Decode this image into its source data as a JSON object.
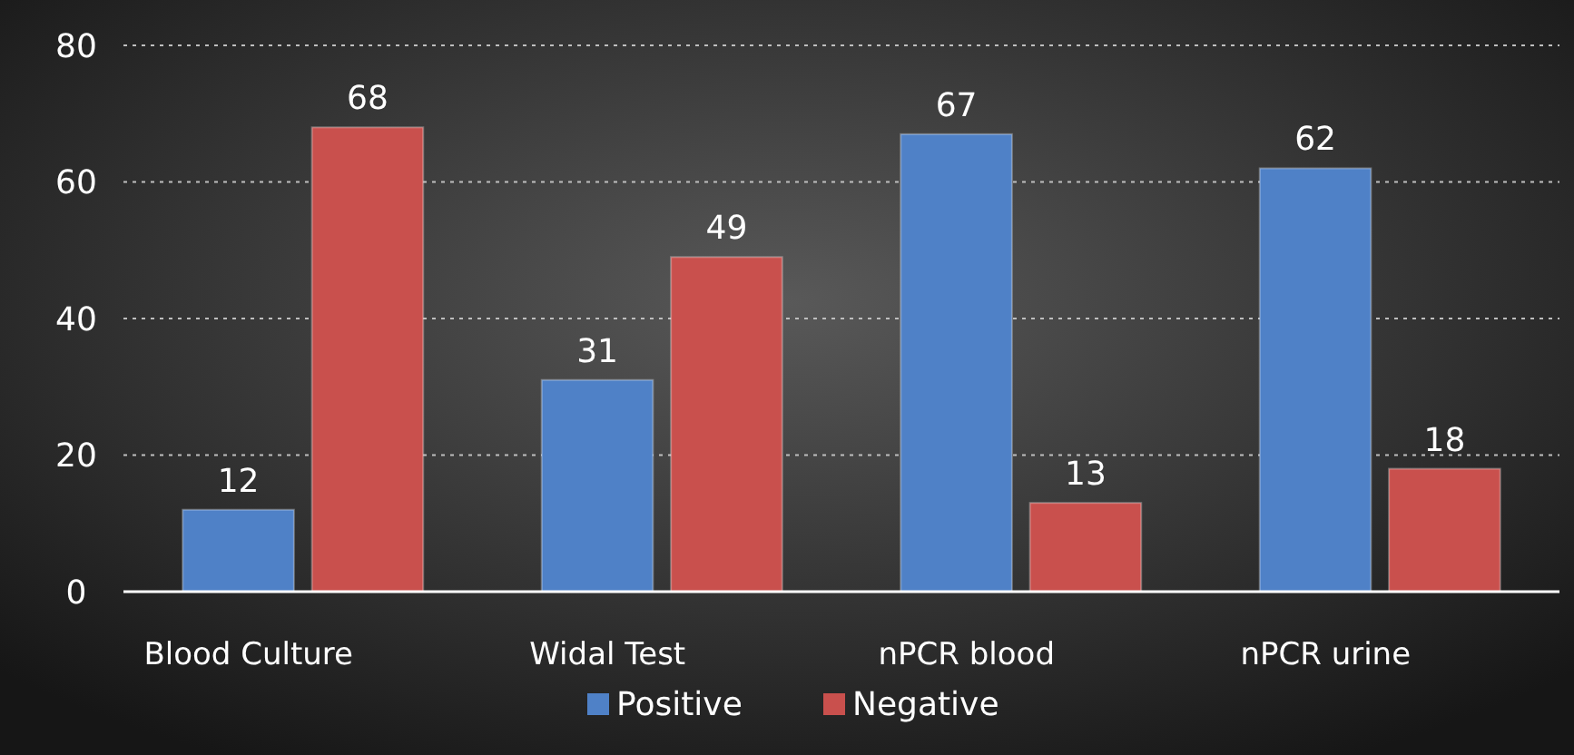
{
  "chart_data": {
    "type": "bar",
    "categories": [
      "Blood Culture",
      "Widal Test",
      "nPCR blood",
      "nPCR urine"
    ],
    "series": [
      {
        "name": "Positive",
        "color": "#4f81c7",
        "values": [
          12,
          31,
          67,
          62
        ]
      },
      {
        "name": "Negative",
        "color": "#c9504d",
        "values": [
          68,
          49,
          13,
          18
        ]
      }
    ],
    "ylim": [
      0,
      80
    ],
    "yticks": [
      0,
      20,
      40,
      60,
      80
    ],
    "grid": "y",
    "legend": "bottom",
    "data_labels": true
  }
}
